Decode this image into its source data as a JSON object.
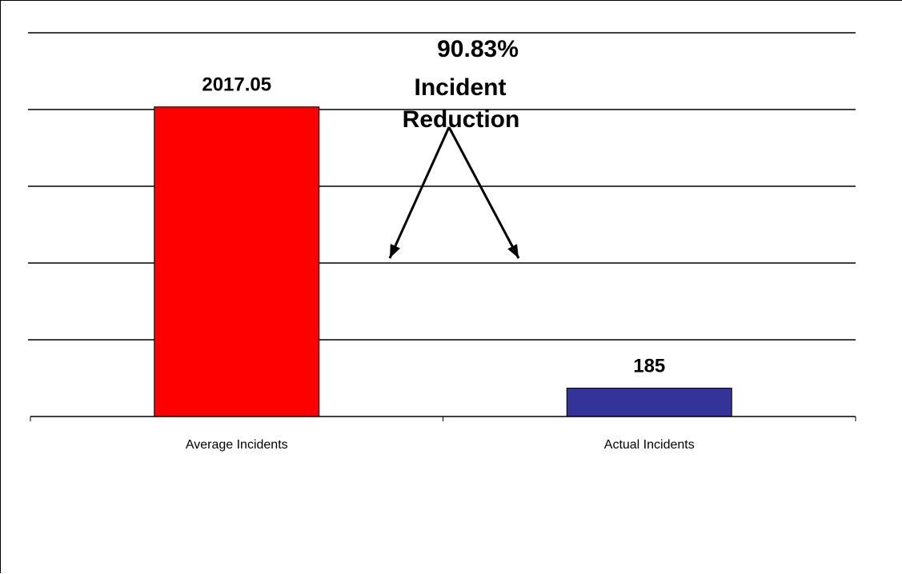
{
  "chart_data": {
    "type": "bar",
    "categories": [
      "Average Incidents",
      "Actual Incidents"
    ],
    "values": [
      2017.05,
      185
    ],
    "data_labels": [
      "2017.05",
      "185"
    ],
    "colors": [
      "#ff0000",
      "#333399"
    ],
    "ylim": [
      0,
      2500
    ],
    "grid": true,
    "annotation": {
      "lines": [
        "90.83%",
        "Incident",
        "Reduction"
      ]
    }
  }
}
